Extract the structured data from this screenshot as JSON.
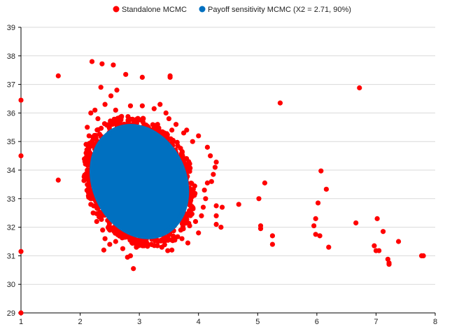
{
  "chart_data": {
    "type": "scatter",
    "xlim": [
      1,
      8
    ],
    "ylim": [
      29,
      39
    ],
    "x_ticks": [
      1,
      2,
      3,
      4,
      5,
      6,
      7,
      8
    ],
    "y_ticks": [
      29,
      30,
      31,
      32,
      33,
      34,
      35,
      36,
      37,
      38,
      39
    ],
    "x_tick_labels": [
      "1",
      "2",
      "3",
      "4",
      "5",
      "6",
      "7",
      "8"
    ],
    "y_tick_labels": [
      "29",
      "30",
      "31",
      "32",
      "33",
      "34",
      "35",
      "36",
      "37",
      "38",
      "39"
    ],
    "grid": "horizontal",
    "legend_position": "top",
    "series": [
      {
        "name": "Standalone MCMC",
        "color": "#ff0000",
        "marker": "circle",
        "points": [
          [
            1.0,
            36.45
          ],
          [
            1.0,
            34.5
          ],
          [
            1.0,
            31.15
          ],
          [
            1.0,
            29.0
          ],
          [
            1.63,
            37.3
          ],
          [
            1.63,
            33.65
          ],
          [
            2.2,
            37.8
          ],
          [
            2.37,
            37.72
          ],
          [
            2.56,
            37.68
          ],
          [
            2.77,
            37.35
          ],
          [
            3.05,
            37.25
          ],
          [
            3.52,
            37.3
          ],
          [
            3.52,
            37.25
          ],
          [
            2.35,
            36.9
          ],
          [
            2.52,
            36.6
          ],
          [
            2.62,
            36.8
          ],
          [
            2.18,
            36.0
          ],
          [
            2.25,
            36.1
          ],
          [
            2.3,
            35.8
          ],
          [
            2.42,
            36.3
          ],
          [
            2.6,
            36.1
          ],
          [
            2.85,
            36.25
          ],
          [
            3.05,
            36.25
          ],
          [
            3.25,
            36.15
          ],
          [
            3.35,
            36.3
          ],
          [
            3.45,
            36.0
          ],
          [
            2.12,
            35.5
          ],
          [
            2.15,
            35.2
          ],
          [
            2.1,
            34.9
          ],
          [
            2.1,
            34.6
          ],
          [
            2.08,
            34.3
          ],
          [
            2.12,
            34.0
          ],
          [
            2.12,
            33.7
          ],
          [
            2.15,
            33.4
          ],
          [
            2.14,
            33.1
          ],
          [
            2.18,
            32.8
          ],
          [
            2.22,
            32.5
          ],
          [
            2.28,
            32.2
          ],
          [
            2.38,
            31.9
          ],
          [
            2.42,
            31.6
          ],
          [
            2.5,
            31.4
          ],
          [
            2.4,
            31.2
          ],
          [
            2.6,
            31.5
          ],
          [
            2.72,
            31.25
          ],
          [
            2.8,
            30.95
          ],
          [
            2.85,
            31.0
          ],
          [
            2.9,
            30.55
          ],
          [
            2.95,
            31.3
          ],
          [
            3.02,
            31.5
          ],
          [
            3.08,
            31.35
          ],
          [
            3.2,
            31.4
          ],
          [
            3.3,
            31.55
          ],
          [
            3.38,
            31.3
          ],
          [
            3.48,
            31.18
          ],
          [
            3.55,
            31.2
          ],
          [
            3.6,
            31.55
          ],
          [
            3.72,
            31.6
          ],
          [
            3.82,
            31.45
          ],
          [
            3.7,
            31.9
          ],
          [
            3.85,
            32.05
          ],
          [
            3.95,
            32.2
          ],
          [
            4.0,
            31.8
          ],
          [
            4.05,
            32.4
          ],
          [
            4.08,
            32.7
          ],
          [
            4.12,
            33.0
          ],
          [
            4.1,
            33.3
          ],
          [
            4.15,
            33.55
          ],
          [
            4.22,
            33.6
          ],
          [
            4.25,
            33.85
          ],
          [
            4.28,
            34.1
          ],
          [
            4.3,
            34.28
          ],
          [
            4.2,
            34.5
          ],
          [
            4.15,
            34.8
          ],
          [
            4.0,
            35.2
          ],
          [
            3.9,
            35.0
          ],
          [
            3.8,
            35.4
          ],
          [
            3.75,
            35.3
          ],
          [
            3.62,
            35.6
          ],
          [
            3.55,
            35.4
          ],
          [
            3.5,
            35.8
          ],
          [
            4.3,
            32.75
          ],
          [
            4.4,
            32.7
          ],
          [
            4.3,
            32.4
          ],
          [
            4.38,
            32.0
          ],
          [
            4.3,
            32.1
          ],
          [
            4.68,
            32.8
          ],
          [
            5.02,
            33.0
          ],
          [
            5.05,
            32.05
          ],
          [
            5.05,
            31.95
          ],
          [
            5.12,
            33.55
          ],
          [
            5.25,
            31.7
          ],
          [
            5.25,
            31.4
          ],
          [
            5.38,
            36.35
          ],
          [
            5.95,
            32.05
          ],
          [
            5.98,
            31.75
          ],
          [
            5.98,
            32.3
          ],
          [
            6.02,
            32.85
          ],
          [
            6.05,
            31.7
          ],
          [
            6.07,
            33.97
          ],
          [
            6.16,
            33.33
          ],
          [
            6.2,
            31.3
          ],
          [
            6.66,
            32.15
          ],
          [
            6.72,
            36.88
          ],
          [
            6.97,
            31.35
          ],
          [
            7.0,
            31.18
          ],
          [
            7.02,
            32.3
          ],
          [
            7.05,
            31.18
          ],
          [
            7.12,
            31.85
          ],
          [
            7.2,
            30.88
          ],
          [
            7.22,
            30.75
          ],
          [
            7.22,
            30.7
          ],
          [
            7.38,
            31.5
          ],
          [
            7.77,
            31.0
          ],
          [
            7.8,
            31.0
          ]
        ]
      },
      {
        "name": "Payoff sensitivity MCMC (X2 = 2.71, 90%)",
        "color": "#0070c0",
        "marker": "circle",
        "region": {
          "center": [
            3.0,
            33.6
          ],
          "x_half_width": 0.78,
          "y_half_height": 1.92,
          "tilt": -0.22
        }
      }
    ]
  }
}
